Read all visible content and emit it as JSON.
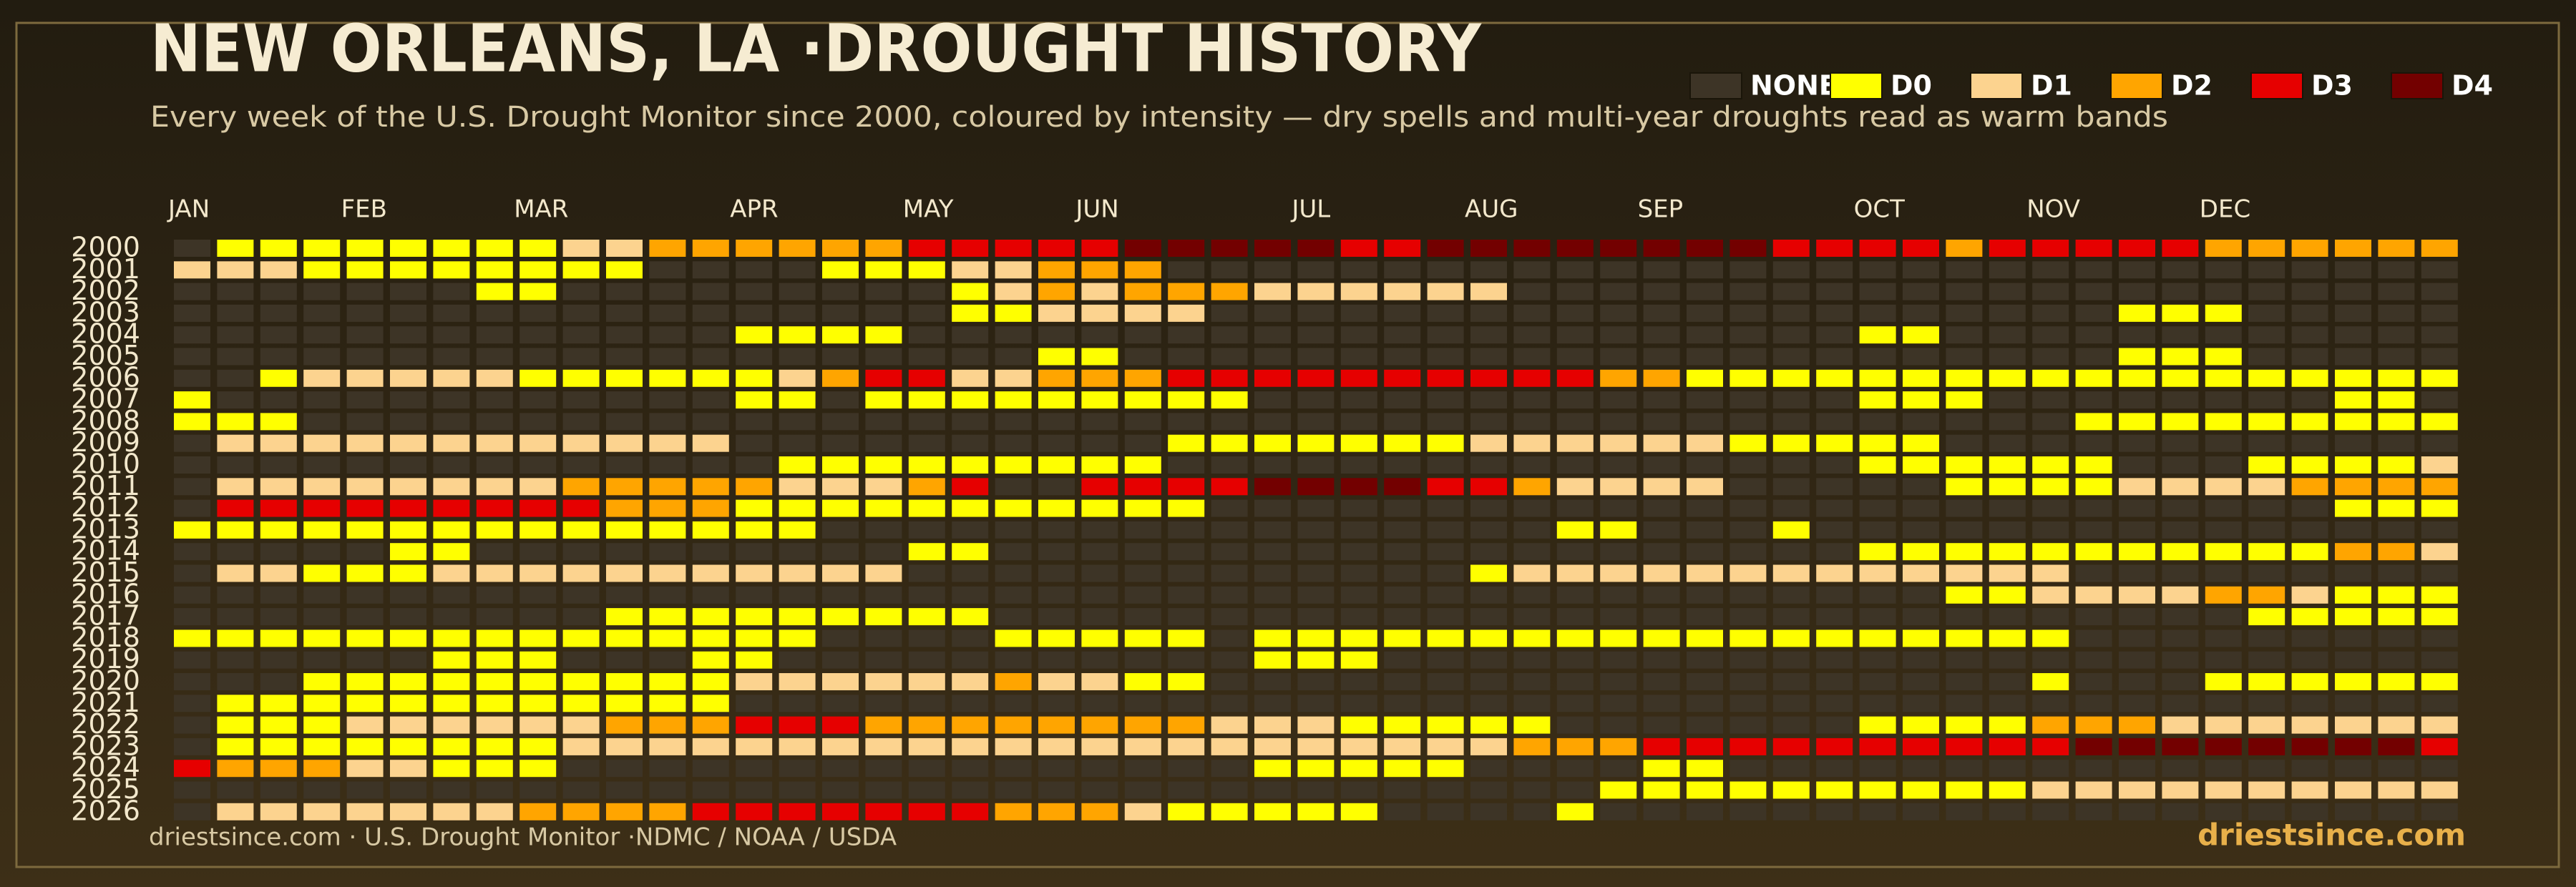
{
  "chart_data": {
    "type": "heatmap",
    "title": "NEW ORLEANS, LA ·DROUGHT HISTORY",
    "subtitle": "Every week of the U.S. Drought Monitor since 2000, coloured by intensity — dry spells and multi-year droughts read as warm bands",
    "source": "driestsince.com  · U.S. Drought Monitor ·NDMC / NOAA / USDA",
    "brand": "driestsince.com",
    "levels": [
      {
        "name": "NONE",
        "color": "#3d3426"
      },
      {
        "name": "D0",
        "color": "#ffff00"
      },
      {
        "name": "D1",
        "color": "#fcd38f"
      },
      {
        "name": "D2",
        "color": "#ffa500"
      },
      {
        "name": "D3",
        "color": "#e60000"
      },
      {
        "name": "D4",
        "color": "#730000"
      }
    ],
    "columns": [
      "JAN",
      null,
      null,
      null,
      "FEB",
      null,
      null,
      null,
      "MAR",
      null,
      null,
      null,
      null,
      "APR",
      null,
      null,
      null,
      "MAY",
      null,
      null,
      null,
      "JUN",
      null,
      null,
      null,
      null,
      "JUL",
      null,
      null,
      null,
      "AUG",
      null,
      null,
      null,
      "SEP",
      null,
      null,
      null,
      null,
      "OCT",
      null,
      null,
      null,
      "NOV",
      null,
      null,
      null,
      "DEC",
      null,
      null,
      null,
      null,
      null
    ],
    "rows": [
      "2000",
      "2001",
      "2002",
      "2003",
      "2004",
      "2005",
      "2006",
      "2007",
      "2008",
      "2009",
      "2010",
      "2011",
      "2012",
      "2013",
      "2014",
      "2015",
      "2016",
      "2017",
      "2018",
      "2019",
      "2020",
      "2021",
      "2022",
      "2023",
      "2024",
      "2025",
      "2026"
    ],
    "values": [
      [
        0,
        1,
        1,
        1,
        1,
        1,
        1,
        1,
        1,
        2,
        2,
        3,
        3,
        3,
        3,
        3,
        3,
        4,
        4,
        4,
        4,
        4,
        5,
        5,
        5,
        5,
        5,
        4,
        4,
        5,
        5,
        5,
        5,
        5,
        5,
        5,
        5,
        4,
        4,
        4,
        4,
        3,
        4,
        4,
        4,
        4,
        4,
        3,
        3,
        3,
        3,
        3,
        3
      ],
      [
        2,
        2,
        2,
        1,
        1,
        1,
        1,
        1,
        1,
        1,
        1,
        0,
        0,
        0,
        0,
        1,
        1,
        1,
        2,
        2,
        3,
        3,
        3,
        0,
        0,
        0,
        0,
        0,
        0,
        0,
        0,
        0,
        0,
        0,
        0,
        0,
        0,
        0,
        0,
        0,
        0,
        0,
        0,
        0,
        0,
        0,
        0,
        0,
        0,
        0,
        0,
        0,
        0
      ],
      [
        0,
        0,
        0,
        0,
        0,
        0,
        0,
        1,
        1,
        0,
        0,
        0,
        0,
        0,
        0,
        0,
        0,
        0,
        1,
        2,
        3,
        2,
        3,
        3,
        3,
        2,
        2,
        2,
        2,
        2,
        2,
        0,
        0,
        0,
        0,
        0,
        0,
        0,
        0,
        0,
        0,
        0,
        0,
        0,
        0,
        0,
        0,
        0,
        0,
        0,
        0,
        0,
        0
      ],
      [
        0,
        0,
        0,
        0,
        0,
        0,
        0,
        0,
        0,
        0,
        0,
        0,
        0,
        0,
        0,
        0,
        0,
        0,
        1,
        1,
        2,
        2,
        2,
        2,
        0,
        0,
        0,
        0,
        0,
        0,
        0,
        0,
        0,
        0,
        0,
        0,
        0,
        0,
        0,
        0,
        0,
        0,
        0,
        0,
        0,
        1,
        1,
        1,
        0,
        0,
        0,
        0,
        0
      ],
      [
        0,
        0,
        0,
        0,
        0,
        0,
        0,
        0,
        0,
        0,
        0,
        0,
        0,
        1,
        1,
        1,
        1,
        0,
        0,
        0,
        0,
        0,
        0,
        0,
        0,
        0,
        0,
        0,
        0,
        0,
        0,
        0,
        0,
        0,
        0,
        0,
        0,
        0,
        0,
        1,
        1,
        0,
        0,
        0,
        0,
        0,
        0,
        0,
        0,
        0,
        0,
        0,
        0
      ],
      [
        0,
        0,
        0,
        0,
        0,
        0,
        0,
        0,
        0,
        0,
        0,
        0,
        0,
        0,
        0,
        0,
        0,
        0,
        0,
        0,
        1,
        1,
        0,
        0,
        0,
        0,
        0,
        0,
        0,
        0,
        0,
        0,
        0,
        0,
        0,
        0,
        0,
        0,
        0,
        0,
        0,
        0,
        0,
        0,
        0,
        1,
        1,
        1,
        0,
        0,
        0,
        0,
        0
      ],
      [
        0,
        0,
        1,
        2,
        2,
        2,
        2,
        2,
        1,
        1,
        1,
        1,
        1,
        1,
        2,
        3,
        4,
        4,
        2,
        2,
        3,
        3,
        3,
        4,
        4,
        4,
        4,
        4,
        4,
        4,
        4,
        4,
        4,
        3,
        3,
        1,
        1,
        1,
        1,
        1,
        1,
        1,
        1,
        1,
        1,
        1,
        1,
        1,
        1,
        1,
        1,
        1,
        1
      ],
      [
        1,
        0,
        0,
        0,
        0,
        0,
        0,
        0,
        0,
        0,
        0,
        0,
        0,
        1,
        1,
        0,
        1,
        1,
        1,
        1,
        1,
        1,
        1,
        1,
        1,
        0,
        0,
        0,
        0,
        0,
        0,
        0,
        0,
        0,
        0,
        0,
        0,
        0,
        0,
        1,
        1,
        1,
        0,
        0,
        0,
        0,
        0,
        0,
        0,
        0,
        1,
        1,
        0
      ],
      [
        1,
        1,
        1,
        0,
        0,
        0,
        0,
        0,
        0,
        0,
        0,
        0,
        0,
        0,
        0,
        0,
        0,
        0,
        0,
        0,
        0,
        0,
        0,
        0,
        0,
        0,
        0,
        0,
        0,
        0,
        0,
        0,
        0,
        0,
        0,
        0,
        0,
        0,
        0,
        0,
        0,
        0,
        0,
        0,
        1,
        1,
        1,
        1,
        1,
        1,
        1,
        1,
        1
      ],
      [
        0,
        2,
        2,
        2,
        2,
        2,
        2,
        2,
        2,
        2,
        2,
        2,
        2,
        0,
        0,
        0,
        0,
        0,
        0,
        0,
        0,
        0,
        0,
        1,
        1,
        1,
        1,
        1,
        1,
        1,
        2,
        2,
        2,
        2,
        2,
        2,
        1,
        1,
        1,
        1,
        1,
        0,
        0,
        0,
        0,
        0,
        0,
        0,
        0,
        0,
        0,
        0,
        0
      ],
      [
        0,
        0,
        0,
        0,
        0,
        0,
        0,
        0,
        0,
        0,
        0,
        0,
        0,
        0,
        1,
        1,
        1,
        1,
        1,
        1,
        1,
        1,
        1,
        0,
        0,
        0,
        0,
        0,
        0,
        0,
        0,
        0,
        0,
        0,
        0,
        0,
        0,
        0,
        0,
        1,
        1,
        1,
        1,
        1,
        1,
        0,
        0,
        0,
        1,
        1,
        1,
        1,
        2
      ],
      [
        0,
        2,
        2,
        2,
        2,
        2,
        2,
        2,
        2,
        3,
        3,
        3,
        3,
        3,
        2,
        2,
        2,
        3,
        4,
        0,
        0,
        4,
        4,
        4,
        4,
        5,
        5,
        5,
        5,
        4,
        4,
        3,
        2,
        2,
        2,
        2,
        0,
        0,
        0,
        0,
        0,
        1,
        1,
        1,
        1,
        2,
        2,
        2,
        2,
        3,
        3,
        3,
        3
      ],
      [
        0,
        4,
        4,
        4,
        4,
        4,
        4,
        4,
        4,
        4,
        3,
        3,
        3,
        1,
        1,
        1,
        1,
        1,
        1,
        1,
        1,
        1,
        1,
        1,
        0,
        0,
        0,
        0,
        0,
        0,
        0,
        0,
        0,
        0,
        0,
        0,
        0,
        0,
        0,
        0,
        0,
        0,
        0,
        0,
        0,
        0,
        0,
        0,
        0,
        0,
        1,
        1,
        1
      ],
      [
        1,
        1,
        1,
        1,
        1,
        1,
        1,
        1,
        1,
        1,
        1,
        1,
        1,
        1,
        1,
        0,
        0,
        0,
        0,
        0,
        0,
        0,
        0,
        0,
        0,
        0,
        0,
        0,
        0,
        0,
        0,
        0,
        1,
        1,
        0,
        0,
        0,
        1,
        0,
        0,
        0,
        0,
        0,
        0,
        0,
        0,
        0,
        0,
        0,
        0,
        0,
        0,
        0
      ],
      [
        0,
        0,
        0,
        0,
        0,
        1,
        1,
        0,
        0,
        0,
        0,
        0,
        0,
        0,
        0,
        0,
        0,
        1,
        1,
        0,
        0,
        0,
        0,
        0,
        0,
        0,
        0,
        0,
        0,
        0,
        0,
        0,
        0,
        0,
        0,
        0,
        0,
        0,
        0,
        1,
        1,
        1,
        1,
        1,
        1,
        1,
        1,
        1,
        1,
        1,
        3,
        3,
        2
      ],
      [
        0,
        2,
        2,
        1,
        1,
        1,
        2,
        2,
        2,
        2,
        2,
        2,
        2,
        2,
        2,
        2,
        2,
        0,
        0,
        0,
        0,
        0,
        0,
        0,
        0,
        0,
        0,
        0,
        0,
        0,
        1,
        2,
        2,
        2,
        2,
        2,
        2,
        2,
        2,
        2,
        2,
        2,
        2,
        2,
        0,
        0,
        0,
        0,
        0,
        0,
        0,
        0,
        0
      ],
      [
        0,
        0,
        0,
        0,
        0,
        0,
        0,
        0,
        0,
        0,
        0,
        0,
        0,
        0,
        0,
        0,
        0,
        0,
        0,
        0,
        0,
        0,
        0,
        0,
        0,
        0,
        0,
        0,
        0,
        0,
        0,
        0,
        0,
        0,
        0,
        0,
        0,
        0,
        0,
        0,
        0,
        1,
        1,
        2,
        2,
        2,
        2,
        3,
        3,
        2,
        1,
        1,
        1
      ],
      [
        0,
        0,
        0,
        0,
        0,
        0,
        0,
        0,
        0,
        0,
        1,
        1,
        1,
        1,
        1,
        1,
        1,
        1,
        1,
        0,
        0,
        0,
        0,
        0,
        0,
        0,
        0,
        0,
        0,
        0,
        0,
        0,
        0,
        0,
        0,
        0,
        0,
        0,
        0,
        0,
        0,
        0,
        0,
        0,
        0,
        0,
        0,
        0,
        1,
        1,
        1,
        1,
        1
      ],
      [
        1,
        1,
        1,
        1,
        1,
        1,
        1,
        1,
        1,
        1,
        1,
        1,
        1,
        1,
        1,
        0,
        0,
        0,
        0,
        1,
        1,
        1,
        1,
        1,
        0,
        1,
        1,
        1,
        1,
        1,
        1,
        1,
        1,
        1,
        1,
        1,
        1,
        1,
        1,
        1,
        1,
        1,
        1,
        1,
        0,
        0,
        0,
        0,
        0,
        0,
        0,
        0,
        0
      ],
      [
        0,
        0,
        0,
        0,
        0,
        0,
        1,
        1,
        1,
        0,
        0,
        0,
        1,
        1,
        0,
        0,
        0,
        0,
        0,
        0,
        0,
        0,
        0,
        0,
        0,
        1,
        1,
        1,
        0,
        0,
        0,
        0,
        0,
        0,
        0,
        0,
        0,
        0,
        0,
        0,
        0,
        0,
        0,
        0,
        0,
        0,
        0,
        0,
        0,
        0,
        0,
        0,
        0
      ],
      [
        0,
        0,
        0,
        1,
        1,
        1,
        1,
        1,
        1,
        1,
        1,
        1,
        1,
        2,
        2,
        2,
        2,
        2,
        2,
        3,
        2,
        2,
        1,
        1,
        0,
        0,
        0,
        0,
        0,
        0,
        0,
        0,
        0,
        0,
        0,
        0,
        0,
        0,
        0,
        0,
        0,
        0,
        0,
        1,
        0,
        0,
        0,
        1,
        1,
        1,
        1,
        1,
        1
      ],
      [
        0,
        1,
        1,
        1,
        1,
        1,
        1,
        1,
        1,
        1,
        1,
        1,
        1,
        0,
        0,
        0,
        0,
        0,
        0,
        0,
        0,
        0,
        0,
        0,
        0,
        0,
        0,
        0,
        0,
        0,
        0,
        0,
        0,
        0,
        0,
        0,
        0,
        0,
        0,
        0,
        0,
        0,
        0,
        0,
        0,
        0,
        0,
        0,
        0,
        0,
        0,
        0,
        0
      ],
      [
        0,
        1,
        1,
        1,
        2,
        2,
        2,
        2,
        2,
        2,
        3,
        3,
        3,
        4,
        4,
        4,
        3,
        3,
        3,
        3,
        3,
        3,
        3,
        3,
        2,
        2,
        2,
        1,
        1,
        1,
        1,
        1,
        0,
        0,
        0,
        0,
        0,
        0,
        0,
        1,
        1,
        1,
        1,
        3,
        3,
        3,
        2,
        2,
        2,
        2,
        2,
        2,
        2
      ],
      [
        0,
        1,
        1,
        1,
        1,
        1,
        1,
        1,
        1,
        2,
        2,
        2,
        2,
        2,
        2,
        2,
        2,
        2,
        2,
        2,
        2,
        2,
        2,
        2,
        2,
        2,
        2,
        2,
        2,
        2,
        2,
        3,
        3,
        3,
        4,
        4,
        4,
        4,
        4,
        4,
        4,
        4,
        4,
        4,
        5,
        5,
        5,
        5,
        5,
        5,
        5,
        5,
        4
      ],
      [
        4,
        3,
        3,
        3,
        2,
        2,
        1,
        1,
        1,
        0,
        0,
        0,
        0,
        0,
        0,
        0,
        0,
        0,
        0,
        0,
        0,
        0,
        0,
        0,
        0,
        1,
        1,
        1,
        1,
        1,
        0,
        0,
        0,
        0,
        1,
        1,
        0,
        0,
        0,
        0,
        0,
        0,
        0,
        0,
        0,
        0,
        0,
        0,
        0,
        0,
        0,
        0,
        0
      ],
      [
        0,
        0,
        0,
        0,
        0,
        0,
        0,
        0,
        0,
        0,
        0,
        0,
        0,
        0,
        0,
        0,
        0,
        0,
        0,
        0,
        0,
        0,
        0,
        0,
        0,
        0,
        0,
        0,
        0,
        0,
        0,
        0,
        0,
        1,
        1,
        1,
        1,
        1,
        1,
        1,
        1,
        1,
        1,
        2,
        2,
        2,
        2,
        2,
        2,
        2,
        2,
        2,
        2
      ],
      [
        0,
        2,
        2,
        2,
        2,
        2,
        2,
        2,
        3,
        3,
        3,
        3,
        4,
        4,
        4,
        4,
        4,
        4,
        4,
        3,
        3,
        3,
        2,
        1,
        1,
        1,
        1,
        1,
        0,
        0,
        0,
        0,
        1,
        0,
        0,
        0,
        0,
        0,
        0,
        0,
        0,
        0,
        0,
        0,
        0,
        0,
        0,
        0,
        0,
        0,
        0,
        0,
        0
      ]
    ]
  }
}
